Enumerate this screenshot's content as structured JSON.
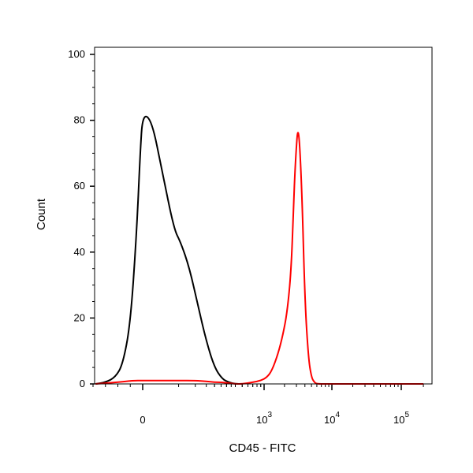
{
  "chart_data": {
    "type": "line",
    "title": "",
    "xlabel": "CD45 - FITC",
    "ylabel": "Count",
    "x_scale": "biexponential",
    "x_ticks": [
      {
        "value": 0,
        "base": "0",
        "exp": ""
      },
      {
        "value": 1000,
        "base": "10",
        "exp": "3"
      },
      {
        "value": 10000,
        "base": "10",
        "exp": "4"
      },
      {
        "value": 100000,
        "base": "10",
        "exp": "5"
      }
    ],
    "ylim": [
      0,
      100
    ],
    "y_ticks": [
      {
        "value": 0,
        "label": "0"
      },
      {
        "value": 20,
        "label": "20"
      },
      {
        "value": 40,
        "label": "40"
      },
      {
        "value": 60,
        "label": "60"
      },
      {
        "value": 80,
        "label": "80"
      },
      {
        "value": 100,
        "label": "100"
      }
    ],
    "grid": false,
    "series": [
      {
        "color": "#000000",
        "x": [
          -190,
          -150,
          -110,
          -80,
          -50,
          -25,
          -10,
          0,
          8,
          20,
          40,
          55,
          80,
          110,
          150,
          200,
          260,
          320,
          400,
          500
        ],
        "y": [
          0,
          0.5,
          2,
          6,
          18,
          45,
          70,
          82,
          80,
          65,
          47,
          43,
          35,
          24,
          13,
          5,
          1.5,
          0.5,
          0,
          0
        ]
      },
      {
        "color": "#ff0000",
        "x": [
          -190,
          -100,
          -40,
          0,
          50,
          100,
          150,
          200,
          250,
          300,
          400,
          500,
          700,
          900,
          1100,
          1300,
          1600,
          1900,
          2200,
          2500,
          2700,
          2900,
          3200,
          3600,
          4000,
          4500,
          5000,
          5500,
          6000,
          8000,
          10000,
          100000,
          200000
        ],
        "y": [
          0,
          0.5,
          1,
          1,
          1,
          1,
          0.8,
          0.5,
          0.5,
          0.3,
          0,
          0,
          0.5,
          1,
          2,
          4,
          9,
          15,
          22,
          34,
          52,
          68,
          80,
          60,
          25,
          8,
          2,
          0.5,
          0,
          0,
          0,
          0,
          0
        ]
      }
    ]
  }
}
